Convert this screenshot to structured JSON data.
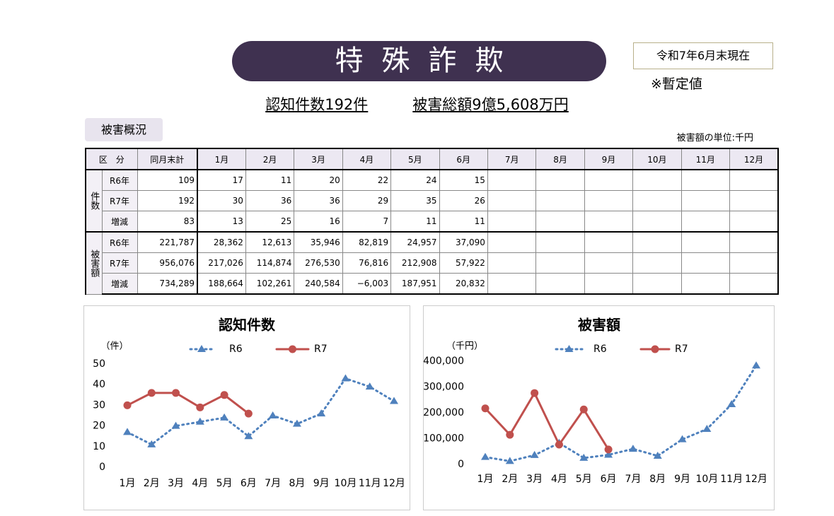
{
  "header": {
    "title": "特殊詐欺",
    "date": "令和7年6月末現在",
    "note": "※暫定値",
    "summary_count": "認知件数192件",
    "summary_amount": "被害総額9億5,608万円",
    "section": "被害概況",
    "unit": "被害額の単位:千円"
  },
  "table": {
    "header": [
      "区　分",
      "同月末計",
      "1月",
      "2月",
      "3月",
      "4月",
      "5月",
      "6月",
      "7月",
      "8月",
      "9月",
      "10月",
      "11月",
      "12月"
    ],
    "groups": [
      {
        "label": "件数",
        "rows": [
          {
            "label": "R6年",
            "values": [
              "109",
              "17",
              "11",
              "20",
              "22",
              "24",
              "15"
            ]
          },
          {
            "label": "R7年",
            "values": [
              "192",
              "30",
              "36",
              "36",
              "29",
              "35",
              "26"
            ]
          },
          {
            "label": "増減",
            "values": [
              "83",
              "13",
              "25",
              "16",
              "7",
              "11",
              "11"
            ]
          }
        ]
      },
      {
        "label": "被害額",
        "rows": [
          {
            "label": "R6年",
            "values": [
              "221,787",
              "28,362",
              "12,613",
              "35,946",
              "82,819",
              "24,957",
              "37,090"
            ]
          },
          {
            "label": "R7年",
            "values": [
              "956,076",
              "217,026",
              "114,874",
              "276,530",
              "76,816",
              "212,908",
              "57,922"
            ]
          },
          {
            "label": "増減",
            "values": [
              "734,289",
              "188,664",
              "102,261",
              "240,584",
              "−6,003",
              "187,951",
              "20,832"
            ]
          }
        ]
      }
    ]
  },
  "chart_data": [
    {
      "type": "line",
      "title": "認知件数",
      "y_label": "（件）",
      "categories": [
        "1月",
        "2月",
        "3月",
        "4月",
        "5月",
        "6月",
        "7月",
        "8月",
        "9月",
        "10月",
        "11月",
        "12月"
      ],
      "series": [
        {
          "name": "R6",
          "color": "#4f81bd",
          "values": [
            17,
            11,
            20,
            22,
            24,
            15,
            25,
            21,
            26,
            43,
            39,
            32
          ]
        },
        {
          "name": "R7",
          "color": "#c0504d",
          "values": [
            30,
            36,
            36,
            29,
            35,
            26,
            null,
            null,
            null,
            null,
            null,
            null
          ]
        }
      ],
      "ylim": [
        0,
        50
      ],
      "yticks": [
        0,
        10,
        20,
        30,
        40,
        50
      ]
    },
    {
      "type": "line",
      "title": "被害額",
      "y_label": "（千円）",
      "categories": [
        "1月",
        "2月",
        "3月",
        "4月",
        "5月",
        "6月",
        "7月",
        "8月",
        "9月",
        "10月",
        "11月",
        "12月"
      ],
      "series": [
        {
          "name": "R6",
          "color": "#4f81bd",
          "values": [
            28362,
            12613,
            35946,
            82819,
            24957,
            37090,
            60000,
            33000,
            97000,
            137000,
            233000,
            383000
          ]
        },
        {
          "name": "R7",
          "color": "#c0504d",
          "values": [
            217026,
            114874,
            276530,
            76816,
            212908,
            57922,
            null,
            null,
            null,
            null,
            null,
            null
          ]
        }
      ],
      "ylim": [
        0,
        400000
      ],
      "yticks": [
        0,
        {
          "value": 100000,
          "label": "100,000"
        },
        {
          "value": 200000,
          "label": "200,000"
        },
        {
          "value": 300000,
          "label": "300,000"
        },
        {
          "value": 400000,
          "label": "400,000"
        }
      ]
    }
  ]
}
